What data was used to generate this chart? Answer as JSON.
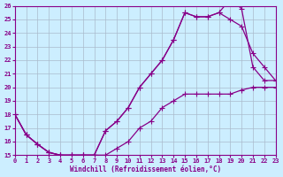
{
  "xlabel": "Windchill (Refroidissement éolien,°C)",
  "bg_color": "#cceeff",
  "grid_color": "#aabbcc",
  "line_color": "#880088",
  "xlim": [
    0,
    23
  ],
  "ylim": [
    15,
    26
  ],
  "xticks": [
    0,
    1,
    2,
    3,
    4,
    5,
    6,
    7,
    8,
    9,
    10,
    11,
    12,
    13,
    14,
    15,
    16,
    17,
    18,
    19,
    20,
    21,
    22,
    23
  ],
  "yticks": [
    15,
    16,
    17,
    18,
    19,
    20,
    21,
    22,
    23,
    24,
    25,
    26
  ],
  "line1_x": [
    0,
    1,
    2,
    3,
    4,
    5,
    6,
    7,
    8,
    9,
    10,
    11,
    12,
    13,
    14,
    15,
    16,
    17,
    18,
    19,
    20,
    21,
    22,
    23
  ],
  "line1_y": [
    18,
    16.5,
    15.8,
    15.2,
    15.0,
    15.0,
    15.0,
    15.0,
    16.8,
    17.5,
    18.5,
    20.0,
    21.0,
    22.0,
    23.5,
    25.5,
    25.2,
    25.2,
    25.5,
    26.5,
    25.8,
    21.5,
    20.5,
    20.5
  ],
  "line2_x": [
    0,
    1,
    2,
    3,
    4,
    5,
    6,
    7,
    8,
    9,
    10,
    11,
    12,
    13,
    14,
    15,
    16,
    17,
    18,
    19,
    20,
    21,
    22,
    23
  ],
  "line2_y": [
    18,
    16.5,
    15.8,
    15.2,
    15.0,
    15.0,
    15.0,
    15.0,
    16.8,
    17.5,
    18.5,
    20.0,
    21.0,
    22.0,
    23.5,
    25.5,
    25.2,
    25.2,
    25.5,
    25.0,
    24.5,
    22.5,
    21.5,
    20.5
  ],
  "line3_x": [
    0,
    1,
    2,
    3,
    4,
    5,
    6,
    7,
    8,
    9,
    10,
    11,
    12,
    13,
    14,
    15,
    16,
    17,
    18,
    19,
    20,
    21,
    22,
    23
  ],
  "line3_y": [
    18,
    16.5,
    15.8,
    15.2,
    15.0,
    15.0,
    15.0,
    15.0,
    15.0,
    15.5,
    16.0,
    17.0,
    17.5,
    18.5,
    19.0,
    19.5,
    19.5,
    19.5,
    19.5,
    19.5,
    19.8,
    20.0,
    20.0,
    20.0
  ],
  "marker": "+",
  "markersize": 4,
  "linewidth": 0.9
}
